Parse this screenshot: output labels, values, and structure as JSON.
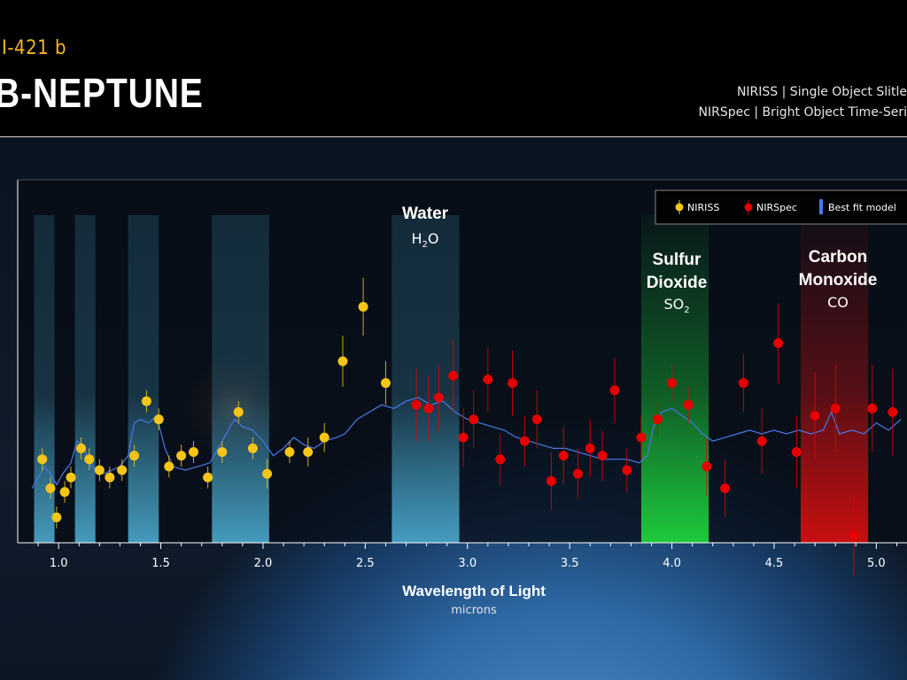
{
  "header": {
    "subtitle": "I-421 b",
    "title": "B-NEPTUNE",
    "instrument_line_1": "NIRISS | Single Object Slitle",
    "instrument_line_2": "NIRSpec | Bright Object Time-Seri"
  },
  "colors": {
    "niriss": "#f5c518",
    "nirspec": "#e60000",
    "model": "#4a78e8",
    "water_band": "#4fb3d9",
    "so2_band": "#1ed23c",
    "co_band": "#d10f0f",
    "subtitle": "#f5b728"
  },
  "chart_data": {
    "type": "scatter",
    "xlabel": "Wavelength of Light",
    "xlabel_sub": "microns",
    "xlim": [
      0.8,
      5.15
    ],
    "ylim": [
      0,
      1
    ],
    "x_ticks": [
      1.0,
      1.5,
      2.0,
      2.5,
      3.0,
      3.5,
      4.0,
      4.5,
      5.0
    ],
    "x_tick_labels": [
      "1.0",
      "1.5",
      "2.0",
      "2.5",
      "3.0",
      "3.5",
      "4.0",
      "4.5",
      "5.0"
    ],
    "legend": {
      "position": "top-right",
      "entries": [
        "NIRISS",
        "NIRSpec",
        "Best fit model"
      ]
    },
    "annotations": [
      {
        "title": "Water",
        "formula": "H",
        "formula_sub": "2",
        "formula_tail": "O"
      },
      {
        "title": "Sulfur",
        "title_line2": "Dioxide",
        "formula": "SO",
        "formula_sub": "2",
        "formula_tail": ""
      },
      {
        "title": "Carbon",
        "title_line2": "Monoxide",
        "formula": "CO",
        "formula_sub": "",
        "formula_tail": ""
      }
    ],
    "bands": [
      {
        "molecule": "water",
        "x0": 0.88,
        "x1": 0.98
      },
      {
        "molecule": "water",
        "x0": 1.08,
        "x1": 1.18
      },
      {
        "molecule": "water",
        "x0": 1.34,
        "x1": 1.49
      },
      {
        "molecule": "water",
        "x0": 1.75,
        "x1": 2.03
      },
      {
        "molecule": "water",
        "x0": 2.63,
        "x1": 2.96
      },
      {
        "molecule": "so2",
        "x0": 3.85,
        "x1": 4.18
      },
      {
        "molecule": "co",
        "x0": 4.63,
        "x1": 4.96
      }
    ],
    "series": [
      {
        "name": "NIRISS",
        "points": [
          {
            "x": 0.92,
            "y": 0.23,
            "err": 0.03
          },
          {
            "x": 0.96,
            "y": 0.15,
            "err": 0.03
          },
          {
            "x": 0.99,
            "y": 0.07,
            "err": 0.03
          },
          {
            "x": 1.03,
            "y": 0.14,
            "err": 0.03
          },
          {
            "x": 1.06,
            "y": 0.18,
            "err": 0.03
          },
          {
            "x": 1.11,
            "y": 0.26,
            "err": 0.03
          },
          {
            "x": 1.15,
            "y": 0.23,
            "err": 0.03
          },
          {
            "x": 1.2,
            "y": 0.2,
            "err": 0.03
          },
          {
            "x": 1.25,
            "y": 0.18,
            "err": 0.03
          },
          {
            "x": 1.31,
            "y": 0.2,
            "err": 0.03
          },
          {
            "x": 1.37,
            "y": 0.24,
            "err": 0.03
          },
          {
            "x": 1.43,
            "y": 0.39,
            "err": 0.03
          },
          {
            "x": 1.49,
            "y": 0.34,
            "err": 0.03
          },
          {
            "x": 1.54,
            "y": 0.21,
            "err": 0.03
          },
          {
            "x": 1.6,
            "y": 0.24,
            "err": 0.03
          },
          {
            "x": 1.66,
            "y": 0.25,
            "err": 0.03
          },
          {
            "x": 1.73,
            "y": 0.18,
            "err": 0.03
          },
          {
            "x": 1.8,
            "y": 0.25,
            "err": 0.03
          },
          {
            "x": 1.88,
            "y": 0.36,
            "err": 0.03
          },
          {
            "x": 1.95,
            "y": 0.26,
            "err": 0.03
          },
          {
            "x": 2.02,
            "y": 0.19,
            "err": 0.04
          },
          {
            "x": 2.13,
            "y": 0.25,
            "err": 0.03
          },
          {
            "x": 2.22,
            "y": 0.25,
            "err": 0.04
          },
          {
            "x": 2.3,
            "y": 0.29,
            "err": 0.04
          },
          {
            "x": 2.39,
            "y": 0.5,
            "err": 0.07
          },
          {
            "x": 2.49,
            "y": 0.65,
            "err": 0.08
          },
          {
            "x": 2.6,
            "y": 0.44,
            "err": 0.06
          }
        ]
      },
      {
        "name": "NIRSpec",
        "points": [
          {
            "x": 2.75,
            "y": 0.38,
            "err": 0.1
          },
          {
            "x": 2.81,
            "y": 0.37,
            "err": 0.09
          },
          {
            "x": 2.86,
            "y": 0.4,
            "err": 0.09
          },
          {
            "x": 2.93,
            "y": 0.46,
            "err": 0.1
          },
          {
            "x": 2.98,
            "y": 0.29,
            "err": 0.08
          },
          {
            "x": 3.03,
            "y": 0.34,
            "err": 0.08
          },
          {
            "x": 3.1,
            "y": 0.45,
            "err": 0.09
          },
          {
            "x": 3.16,
            "y": 0.23,
            "err": 0.07
          },
          {
            "x": 3.22,
            "y": 0.44,
            "err": 0.09
          },
          {
            "x": 3.28,
            "y": 0.28,
            "err": 0.07
          },
          {
            "x": 3.34,
            "y": 0.34,
            "err": 0.08
          },
          {
            "x": 3.41,
            "y": 0.17,
            "err": 0.08
          },
          {
            "x": 3.47,
            "y": 0.24,
            "err": 0.08
          },
          {
            "x": 3.54,
            "y": 0.19,
            "err": 0.07
          },
          {
            "x": 3.6,
            "y": 0.26,
            "err": 0.08
          },
          {
            "x": 3.66,
            "y": 0.24,
            "err": 0.07
          },
          {
            "x": 3.72,
            "y": 0.42,
            "err": 0.09
          },
          {
            "x": 3.78,
            "y": 0.2,
            "err": 0.06
          },
          {
            "x": 3.85,
            "y": 0.29,
            "err": 0.06
          },
          {
            "x": 3.93,
            "y": 0.34,
            "err": 0.05
          },
          {
            "x": 4.0,
            "y": 0.44,
            "err": 0.05
          },
          {
            "x": 4.08,
            "y": 0.38,
            "err": 0.05
          },
          {
            "x": 4.17,
            "y": 0.21,
            "err": 0.08
          },
          {
            "x": 4.26,
            "y": 0.15,
            "err": 0.08
          },
          {
            "x": 4.35,
            "y": 0.44,
            "err": 0.08
          },
          {
            "x": 4.44,
            "y": 0.28,
            "err": 0.09
          },
          {
            "x": 4.52,
            "y": 0.55,
            "err": 0.11
          },
          {
            "x": 4.61,
            "y": 0.25,
            "err": 0.1
          },
          {
            "x": 4.7,
            "y": 0.35,
            "err": 0.12
          },
          {
            "x": 4.8,
            "y": 0.37,
            "err": 0.12
          },
          {
            "x": 4.89,
            "y": 0.02,
            "err": 0.11
          },
          {
            "x": 4.98,
            "y": 0.37,
            "err": 0.12
          },
          {
            "x": 5.08,
            "y": 0.36,
            "err": 0.12
          }
        ]
      },
      {
        "name": "Best fit model",
        "line": [
          [
            0.87,
            0.15
          ],
          [
            0.9,
            0.18
          ],
          [
            0.93,
            0.21
          ],
          [
            0.96,
            0.19
          ],
          [
            0.99,
            0.16
          ],
          [
            1.02,
            0.19
          ],
          [
            1.06,
            0.22
          ],
          [
            1.09,
            0.28
          ],
          [
            1.12,
            0.27
          ],
          [
            1.15,
            0.22
          ],
          [
            1.18,
            0.2
          ],
          [
            1.22,
            0.19
          ],
          [
            1.26,
            0.2
          ],
          [
            1.3,
            0.21
          ],
          [
            1.34,
            0.24
          ],
          [
            1.37,
            0.33
          ],
          [
            1.4,
            0.34
          ],
          [
            1.44,
            0.33
          ],
          [
            1.48,
            0.35
          ],
          [
            1.52,
            0.26
          ],
          [
            1.56,
            0.21
          ],
          [
            1.62,
            0.2
          ],
          [
            1.68,
            0.21
          ],
          [
            1.74,
            0.22
          ],
          [
            1.8,
            0.28
          ],
          [
            1.86,
            0.34
          ],
          [
            1.9,
            0.32
          ],
          [
            1.95,
            0.31
          ],
          [
            2.0,
            0.28
          ],
          [
            2.05,
            0.24
          ],
          [
            2.1,
            0.26
          ],
          [
            2.15,
            0.29
          ],
          [
            2.2,
            0.27
          ],
          [
            2.25,
            0.26
          ],
          [
            2.3,
            0.28
          ],
          [
            2.36,
            0.29
          ],
          [
            2.4,
            0.3
          ],
          [
            2.46,
            0.34
          ],
          [
            2.52,
            0.36
          ],
          [
            2.58,
            0.38
          ],
          [
            2.64,
            0.37
          ],
          [
            2.7,
            0.39
          ],
          [
            2.76,
            0.4
          ],
          [
            2.82,
            0.38
          ],
          [
            2.88,
            0.39
          ],
          [
            2.94,
            0.36
          ],
          [
            3.0,
            0.34
          ],
          [
            3.06,
            0.33
          ],
          [
            3.12,
            0.32
          ],
          [
            3.18,
            0.31
          ],
          [
            3.24,
            0.29
          ],
          [
            3.3,
            0.28
          ],
          [
            3.36,
            0.27
          ],
          [
            3.42,
            0.26
          ],
          [
            3.48,
            0.26
          ],
          [
            3.54,
            0.25
          ],
          [
            3.6,
            0.24
          ],
          [
            3.66,
            0.23
          ],
          [
            3.72,
            0.23
          ],
          [
            3.78,
            0.23
          ],
          [
            3.84,
            0.22
          ],
          [
            3.88,
            0.24
          ],
          [
            3.91,
            0.32
          ],
          [
            3.95,
            0.36
          ],
          [
            4.0,
            0.37
          ],
          [
            4.05,
            0.35
          ],
          [
            4.1,
            0.33
          ],
          [
            4.15,
            0.3
          ],
          [
            4.2,
            0.28
          ],
          [
            4.26,
            0.29
          ],
          [
            4.32,
            0.3
          ],
          [
            4.38,
            0.31
          ],
          [
            4.44,
            0.3
          ],
          [
            4.5,
            0.31
          ],
          [
            4.56,
            0.3
          ],
          [
            4.62,
            0.31
          ],
          [
            4.68,
            0.3
          ],
          [
            4.74,
            0.31
          ],
          [
            4.78,
            0.36
          ],
          [
            4.82,
            0.3
          ],
          [
            4.88,
            0.31
          ],
          [
            4.94,
            0.3
          ],
          [
            5.0,
            0.33
          ],
          [
            5.06,
            0.31
          ],
          [
            5.12,
            0.34
          ]
        ]
      }
    ]
  }
}
